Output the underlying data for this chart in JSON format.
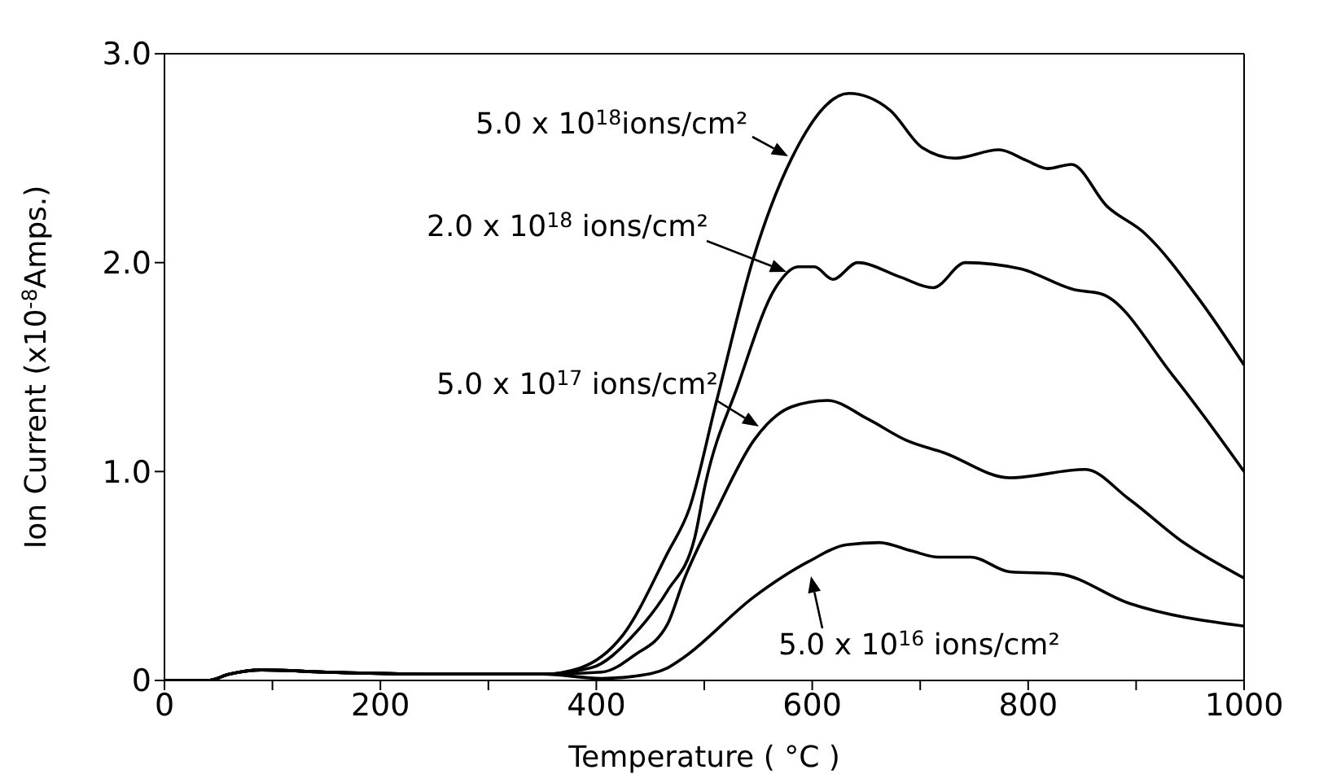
{
  "chart_data": {
    "type": "line",
    "xlabel": "Temperature ( °C )",
    "ylabel": "Ion Current (x10$^{-8}$Amps.)",
    "xlim": [
      0,
      1000
    ],
    "ylim": [
      0,
      3
    ],
    "xticks": [
      0,
      {
        "value": 100,
        "label": null
      },
      200,
      {
        "value": 300,
        "label": null
      },
      400,
      {
        "value": 500,
        "label": null
      },
      600,
      {
        "value": 700,
        "label": null
      },
      800,
      {
        "value": 900,
        "label": null
      },
      1000
    ],
    "yticks": [
      0,
      {
        "value": 1,
        "label": "1.0"
      },
      {
        "value": 2,
        "label": "2.0"
      },
      {
        "value": 3,
        "label": "3.0"
      }
    ],
    "grid": false,
    "marker": "none",
    "line_style": "solid",
    "series": [
      {
        "name": "5.0 x 10$^{18}$ions/cm²",
        "color": "#000000",
        "x": [
          0,
          40,
          60,
          90,
          150,
          250,
          350,
          385,
          425,
          466,
          486,
          511,
          546,
          581,
          634,
          672,
          702,
          732,
          773,
          798,
          818,
          840,
          873,
          908,
          959,
          1000
        ],
        "values": [
          0,
          0,
          0.03,
          0.05,
          0.04,
          0.03,
          0.03,
          0.06,
          0.22,
          0.61,
          0.82,
          1.33,
          2.03,
          2.5,
          2.81,
          2.73,
          2.55,
          2.5,
          2.54,
          2.49,
          2.45,
          2.47,
          2.27,
          2.14,
          1.82,
          1.51
        ]
      },
      {
        "name": "2.0 x 10$^{18}$ ions/cm²",
        "color": "#000000",
        "x": [
          0,
          40,
          60,
          90,
          150,
          250,
          350,
          395,
          435,
          466,
          491,
          501,
          531,
          566,
          587,
          602,
          619,
          642,
          682,
          712,
          742,
          793,
          843,
          868,
          934,
          1000
        ],
        "values": [
          0,
          0,
          0.03,
          0.05,
          0.04,
          0.03,
          0.03,
          0.06,
          0.22,
          0.43,
          0.68,
          0.94,
          1.41,
          1.88,
          1.98,
          1.98,
          1.92,
          2.0,
          1.93,
          1.88,
          2.0,
          1.97,
          1.87,
          1.85,
          1.46,
          1.0
        ]
      },
      {
        "name": "5.0 x 10$^{17}$ ions/cm²",
        "color": "#000000",
        "x": [
          0,
          40,
          60,
          90,
          150,
          250,
          350,
          405,
          435,
          466,
          481,
          511,
          546,
          581,
          614,
          652,
          687,
          722,
          783,
          853,
          893,
          944,
          1000
        ],
        "values": [
          0,
          0,
          0.03,
          0.05,
          0.04,
          0.03,
          0.03,
          0.04,
          0.12,
          0.27,
          0.48,
          0.81,
          1.15,
          1.31,
          1.34,
          1.25,
          1.15,
          1.09,
          0.97,
          1.01,
          0.87,
          0.66,
          0.49
        ]
      },
      {
        "name": "5.0 x 10$^{16}$ ions/cm²",
        "color": "#000000",
        "x": [
          0,
          40,
          60,
          90,
          150,
          250,
          350,
          405,
          435,
          466,
          481,
          546,
          597,
          632,
          662,
          692,
          717,
          747,
          783,
          828,
          893,
          1000
        ],
        "values": [
          0,
          0,
          0.03,
          0.05,
          0.04,
          0.03,
          0.03,
          0.01,
          0.02,
          0.06,
          0.11,
          0.4,
          0.57,
          0.65,
          0.66,
          0.62,
          0.59,
          0.59,
          0.52,
          0.51,
          0.37,
          0.26
        ]
      }
    ]
  }
}
